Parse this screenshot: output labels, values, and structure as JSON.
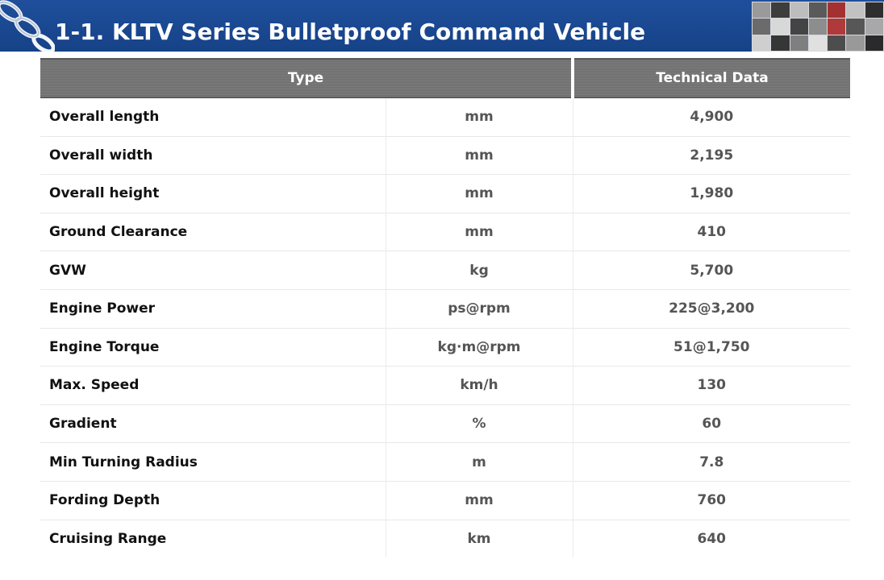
{
  "header": {
    "title": "1-1. KLTV Series Bulletproof Command Vehicle",
    "background_color": "#164287",
    "decor_icon": "chain-link-icon",
    "thumbnail_strip": "vehicle-photo-thumbnails"
  },
  "table": {
    "headers": {
      "type": "Type",
      "technical_data": "Technical Data"
    },
    "header_color": "#737373",
    "rows": [
      {
        "label": "Overall length",
        "unit": "mm",
        "value": "4,900"
      },
      {
        "label": "Overall width",
        "unit": "mm",
        "value": "2,195"
      },
      {
        "label": "Overall height",
        "unit": "mm",
        "value": "1,980"
      },
      {
        "label": "Ground Clearance",
        "unit": "mm",
        "value": "410"
      },
      {
        "label": "GVW",
        "unit": "kg",
        "value": "5,700"
      },
      {
        "label": "Engine Power",
        "unit": "ps@rpm",
        "value": "225@3,200"
      },
      {
        "label": "Engine Torque",
        "unit": "kg·m@rpm",
        "value": "51@1,750"
      },
      {
        "label": "Max. Speed",
        "unit": "km/h",
        "value": "130"
      },
      {
        "label": "Gradient",
        "unit": "%",
        "value": "60"
      },
      {
        "label": "Min Turning Radius",
        "unit": "m",
        "value": "7.8"
      },
      {
        "label": "Fording Depth",
        "unit": "mm",
        "value": "760"
      },
      {
        "label": "Cruising Range",
        "unit": "km",
        "value": "640"
      }
    ]
  }
}
